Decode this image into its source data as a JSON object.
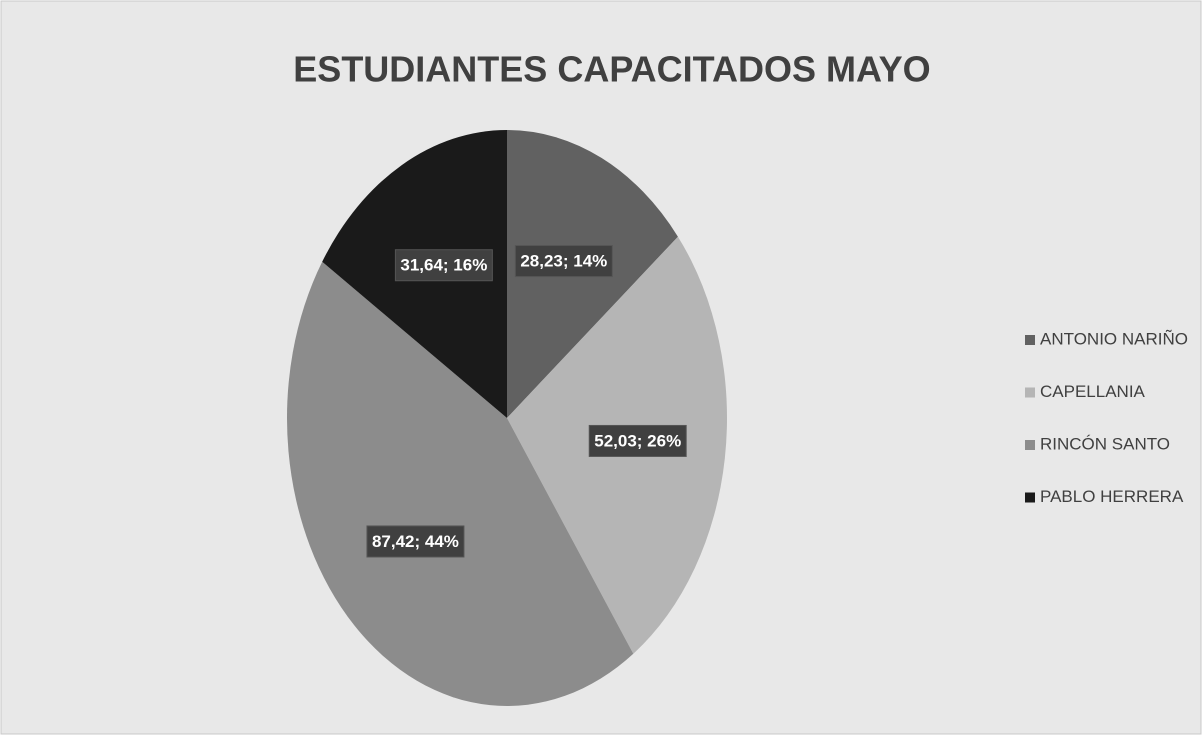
{
  "chart_data": {
    "type": "pie",
    "title": "ESTUDIANTES CAPACITADOS MAYO",
    "categories": [
      "ANTONIO NARIÑO",
      "CAPELLANIA",
      "RINCÓN SANTO",
      "PABLO HERRERA"
    ],
    "values": [
      28.23,
      52.03,
      87.42,
      31.64
    ],
    "value_labels": [
      "28,23; 14%",
      "52,03; 26%",
      "87,42; 44%",
      "31,64; 16%"
    ],
    "colors": [
      "#616161",
      "#b5b5b5",
      "#8c8c8c",
      "#1a1a1a"
    ],
    "legend": "right"
  }
}
